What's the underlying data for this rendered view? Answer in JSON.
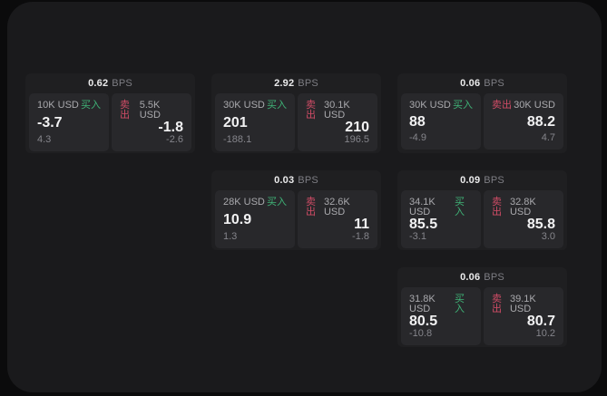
{
  "labels": {
    "bps_unit": "BPS",
    "buy": "买入",
    "sell": "卖出"
  },
  "colors": {
    "page_background": "#0b0b0c",
    "surface_background": "#1a1a1c",
    "card_background": "#1f1f21",
    "panel_background": "#28282b",
    "buy_green": "#3fb377",
    "sell_red": "#d04c66"
  },
  "cards": [
    {
      "bps": "0.62",
      "buy": {
        "size": "10K USD",
        "price": "-3.7",
        "sub_value": "4.3"
      },
      "sell": {
        "size": "5.5K USD",
        "price": "-1.8",
        "sub_value": "-2.6"
      }
    },
    {
      "bps": "2.92",
      "buy": {
        "size": "30K USD",
        "price": "201",
        "sub_value": "-188.1"
      },
      "sell": {
        "size": "30.1K USD",
        "price": "210",
        "sub_value": "196.5"
      }
    },
    {
      "bps": "0.06",
      "buy": {
        "size": "30K USD",
        "price": "88",
        "sub_value": "-4.9"
      },
      "sell": {
        "size": "30K USD",
        "price": "88.2",
        "sub_value": "4.7"
      }
    },
    {
      "bps": "0.03",
      "buy": {
        "size": "28K USD",
        "price": "10.9",
        "sub_value": "1.3"
      },
      "sell": {
        "size": "32.6K USD",
        "price": "11",
        "sub_value": "-1.8"
      }
    },
    {
      "bps": "0.09",
      "buy": {
        "size": "34.1K USD",
        "price": "85.5",
        "sub_value": "-3.1"
      },
      "sell": {
        "size": "32.8K USD",
        "price": "85.8",
        "sub_value": "3.0"
      }
    },
    {
      "bps": "0.06",
      "buy": {
        "size": "31.8K USD",
        "price": "80.5",
        "sub_value": "-10.8"
      },
      "sell": {
        "size": "39.1K USD",
        "price": "80.7",
        "sub_value": "10.2"
      }
    }
  ]
}
